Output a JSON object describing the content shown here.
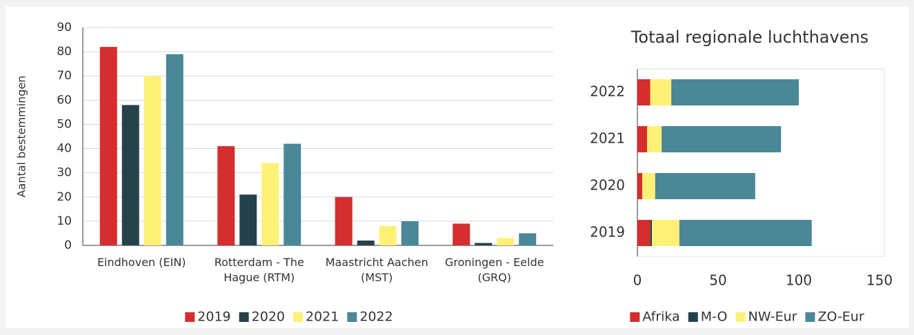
{
  "chart_data": [
    {
      "type": "bar",
      "ylabel": "Aantal bestemmingen",
      "categories": [
        "Eindhoven (EIN)",
        "Rotterdam - The Hague (RTM)",
        "Maastricht Aachen (MST)",
        "Groningen - Eelde (GRQ)"
      ],
      "series": [
        {
          "name": "2019",
          "color": "#d42e2e",
          "values": [
            82,
            41,
            20,
            9
          ]
        },
        {
          "name": "2020",
          "color": "#25424a",
          "values": [
            58,
            21,
            2,
            1
          ]
        },
        {
          "name": "2021",
          "color": "#fff176",
          "values": [
            70,
            34,
            8,
            3
          ]
        },
        {
          "name": "2022",
          "color": "#4a8797",
          "values": [
            79,
            42,
            10,
            5
          ]
        }
      ],
      "ylim": [
        0,
        90
      ],
      "yticks": [
        0,
        10,
        20,
        30,
        40,
        50,
        60,
        70,
        80,
        90
      ],
      "grid": true,
      "legend": "bottom"
    },
    {
      "type": "bar",
      "stacked": true,
      "horizontal": true,
      "title": "Totaal regionale luchthavens",
      "categories": [
        "2019",
        "2020",
        "2021",
        "2022"
      ],
      "series": [
        {
          "name": "Afrika",
          "color": "#d42e2e",
          "values": [
            8,
            3,
            6,
            8
          ]
        },
        {
          "name": "M-O",
          "color": "#25424a",
          "values": [
            1,
            0,
            0,
            0
          ]
        },
        {
          "name": "NW-Eur",
          "color": "#fff176",
          "values": [
            17,
            8,
            9,
            13
          ]
        },
        {
          "name": "ZO-Eur",
          "color": "#4a8797",
          "values": [
            82,
            62,
            74,
            79
          ]
        }
      ],
      "xlim": [
        0,
        150
      ],
      "xticks": [
        0,
        50,
        100,
        150
      ],
      "grid": false,
      "legend": "bottom"
    }
  ]
}
